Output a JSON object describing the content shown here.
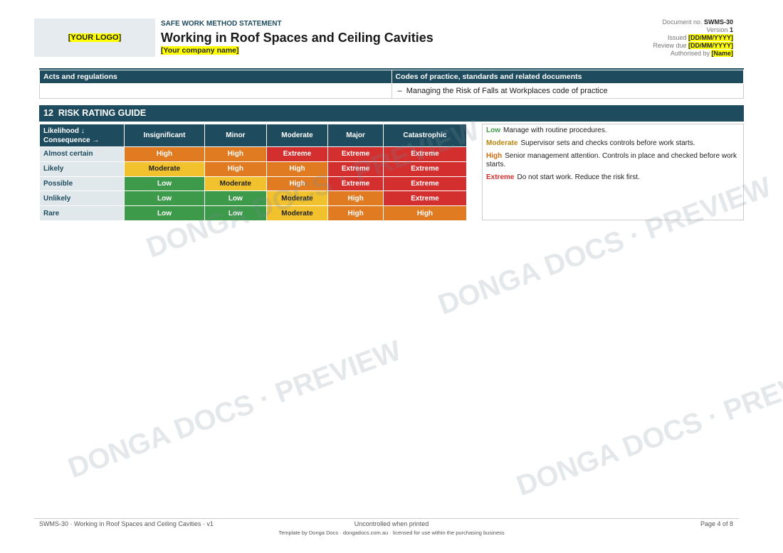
{
  "header": {
    "logo": "[YOUR LOGO]",
    "kicker": "SAFE WORK METHOD STATEMENT",
    "title": "Working in Roof Spaces and Ceiling Cavities",
    "company": "[Your company name]",
    "meta": [
      {
        "label": "Document no.",
        "value": "SWMS-30"
      },
      {
        "label": "Version",
        "value": "1"
      },
      {
        "label": "Issued",
        "value": "[DD/MM/YYYY]"
      },
      {
        "label": "Review due",
        "value": "[DD/MM/YYYY]"
      },
      {
        "label": "Authorised by",
        "value": "[Name]"
      }
    ]
  },
  "references": {
    "headers": [
      "Acts and regulations",
      "Codes of practice, standards and related documents"
    ],
    "codes": [
      "Managing the Risk of Falls at Workplaces code of practice"
    ]
  },
  "section": {
    "number": "12",
    "title": "RISK RATING GUIDE"
  },
  "matrix": {
    "corner": [
      "Likelihood ↓",
      "Consequence →"
    ],
    "columns": [
      "Insignificant",
      "Minor",
      "Moderate",
      "Major",
      "Catastrophic"
    ],
    "rows": [
      {
        "label": "Almost certain",
        "cells": [
          "High",
          "High",
          "Extreme",
          "Extreme",
          "Extreme"
        ]
      },
      {
        "label": "Likely",
        "cells": [
          "Moderate",
          "High",
          "High",
          "Extreme",
          "Extreme"
        ]
      },
      {
        "label": "Possible",
        "cells": [
          "Low",
          "Moderate",
          "High",
          "Extreme",
          "Extreme"
        ]
      },
      {
        "label": "Unlikely",
        "cells": [
          "Low",
          "Low",
          "Moderate",
          "High",
          "Extreme"
        ]
      },
      {
        "label": "Rare",
        "cells": [
          "Low",
          "Low",
          "Moderate",
          "High",
          "High"
        ]
      }
    ]
  },
  "legend": [
    {
      "level": "Low",
      "text": "Manage with routine procedures."
    },
    {
      "level": "Moderate",
      "text": "Supervisor sets and checks controls before work starts."
    },
    {
      "level": "High",
      "text": "Senior management attention. Controls in place and checked before work starts."
    },
    {
      "level": "Extreme",
      "text": "Do not start work. Reduce the risk first."
    }
  ],
  "watermark": "DONGA DOCS · PREVIEW",
  "footer": {
    "left": "SWMS-30 · Working in Roof Spaces and Ceiling Cavities · v1",
    "center": "Uncontrolled when printed",
    "right": "Page 4 of 8",
    "sub": "Template by Donga Docs · dongadocs.com.au · licensed for use within the purchasing business"
  }
}
